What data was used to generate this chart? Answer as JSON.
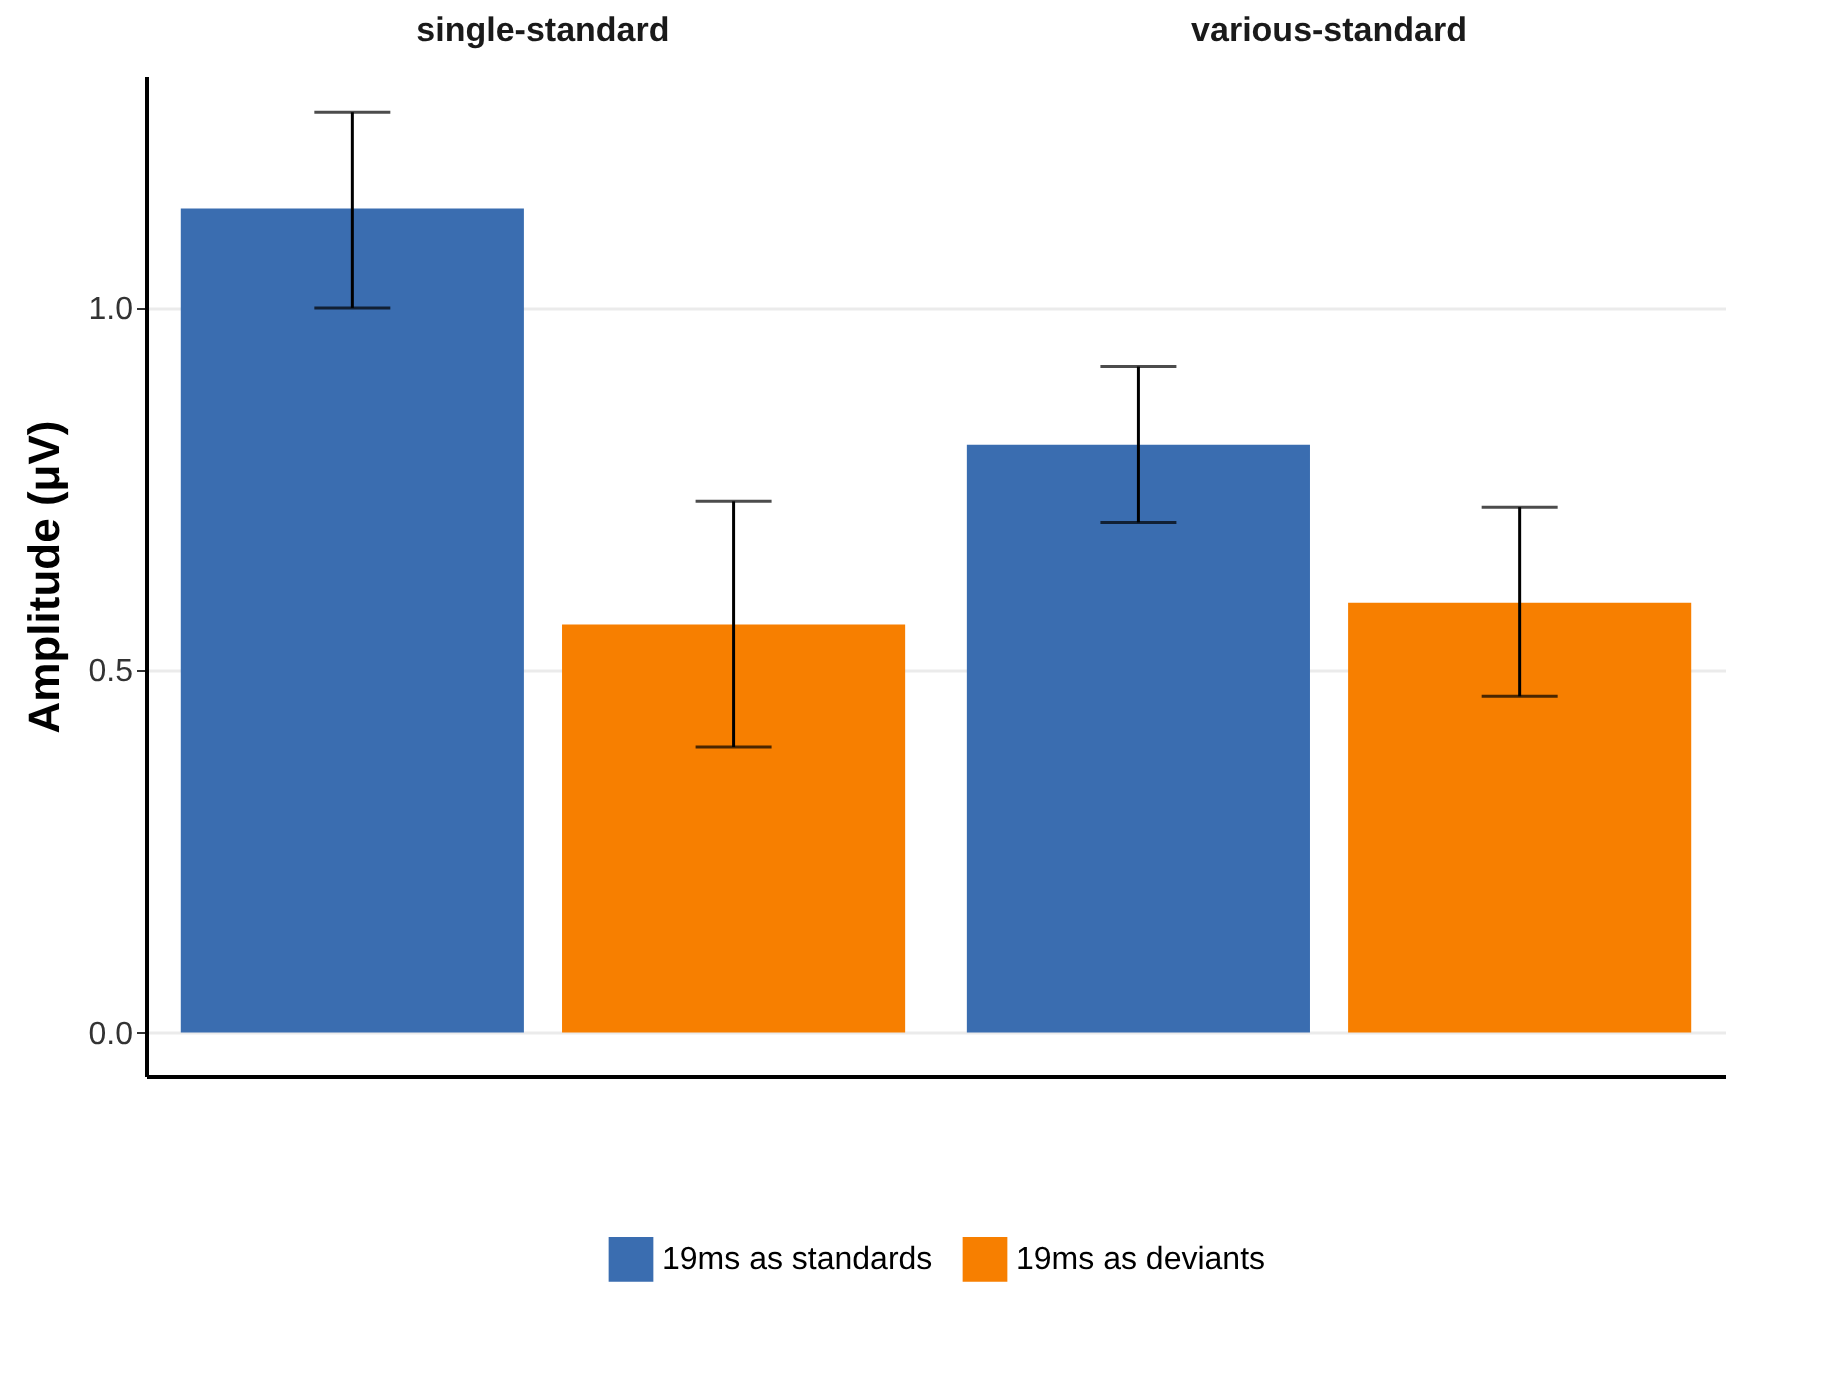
{
  "chart_data": {
    "type": "bar",
    "ylabel": "Amplitude (μV)",
    "categories": [
      "single-standard",
      "various-standard"
    ],
    "series": [
      {
        "name": "19ms as standards",
        "color": "#3a6db0",
        "values": [
          1.137,
          0.811
        ],
        "errors": [
          [
            1.0,
            1.27
          ],
          [
            0.704,
            0.919
          ]
        ]
      },
      {
        "name": "19ms as deviants",
        "color": "#f77f00",
        "values": [
          0.563,
          0.593
        ],
        "errors": [
          [
            0.394,
            0.733
          ],
          [
            0.464,
            0.725
          ]
        ]
      }
    ],
    "ylim": [
      -0.06,
      1.32
    ],
    "yticks": [
      {
        "value": 0,
        "label": "0.0"
      },
      {
        "value": 0.5,
        "label": "0.5"
      },
      {
        "value": 1,
        "label": "1.0"
      }
    ],
    "grid": "y",
    "legend": "bottom"
  }
}
